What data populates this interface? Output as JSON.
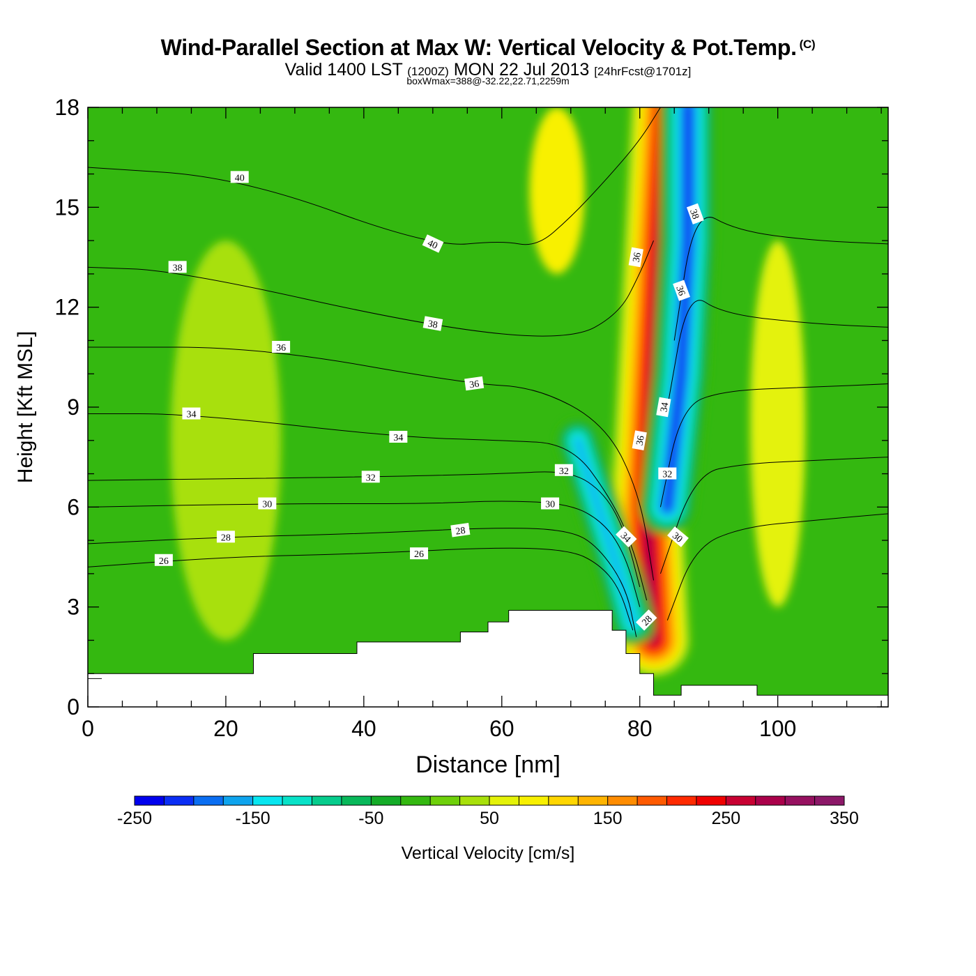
{
  "title": {
    "main": "Wind-Parallel Section at Max W: Vertical Velocity & Pot.Temp.",
    "copyright": "(C)",
    "valid_prefix": "Valid 1400 LST",
    "valid_utc": "(1200Z)",
    "valid_date": "MON 22 Jul 2013",
    "forecast": "[24hrFcst@1701z]",
    "subtitle": "boxWmax=388@-32.22,22.71,2259m"
  },
  "chart_data": {
    "type": "heatmap",
    "xlabel": "Distance [nm]",
    "ylabel": "Height [Kft MSL]",
    "xlim": [
      0,
      116
    ],
    "ylim": [
      0,
      18
    ],
    "xticks": [
      0,
      20,
      40,
      60,
      80,
      100
    ],
    "yticks": [
      0,
      3,
      6,
      9,
      12,
      15,
      18
    ],
    "colorbar": {
      "label": "Vertical Velocity [cm/s]",
      "range": [
        -250,
        350
      ],
      "step": 25,
      "ticks": [
        -250,
        -150,
        -50,
        50,
        150,
        250,
        350
      ],
      "colors": [
        "#0000ee",
        "#0a2ef5",
        "#0a6ef2",
        "#0ea4ee",
        "#08e6f0",
        "#08e2c8",
        "#06cc8c",
        "#08b85a",
        "#14ac28",
        "#34b810",
        "#6ed00a",
        "#a8e00a",
        "#e4f208",
        "#f8f000",
        "#ffd600",
        "#ffb400",
        "#ff8c00",
        "#ff5a00",
        "#ff2a00",
        "#f00000",
        "#c80032",
        "#aa004a",
        "#961060",
        "#8c1868"
      ]
    },
    "background_value": -25,
    "terrain": [
      [
        0,
        1.0
      ],
      [
        24,
        1.6
      ],
      [
        39,
        1.95
      ],
      [
        54,
        2.25
      ],
      [
        58,
        2.55
      ],
      [
        61,
        2.9
      ],
      [
        76,
        2.3
      ],
      [
        78,
        1.6
      ],
      [
        80,
        1.0
      ],
      [
        82,
        0.35
      ],
      [
        86,
        0.65
      ],
      [
        97,
        0.35
      ],
      [
        116,
        0.35
      ]
    ],
    "field_features": [
      {
        "desc": "updraft core",
        "peak_value": 300,
        "path_x": [
          82,
          81,
          82,
          83,
          84
        ],
        "path_y": [
          2,
          6,
          10,
          14,
          18
        ]
      },
      {
        "desc": "downdraft upper",
        "peak_value": -225,
        "path_x": [
          84,
          86,
          87,
          87
        ],
        "path_y": [
          6,
          10,
          14,
          18
        ]
      },
      {
        "desc": "downdraft lower",
        "peak_value": -175,
        "path_x": [
          71,
          74,
          77,
          79
        ],
        "path_y": [
          8,
          6,
          4,
          2.5
        ]
      },
      {
        "desc": "weak ascent band left",
        "peak_value": 25,
        "x_range": [
          12,
          28
        ],
        "y_range": [
          2,
          14
        ]
      },
      {
        "desc": "weak ascent band upper",
        "peak_value": 75,
        "x_range": [
          64,
          72
        ],
        "y_range": [
          13,
          18
        ]
      },
      {
        "desc": "weak ascent band right",
        "peak_value": 50,
        "x_range": [
          96,
          104
        ],
        "y_range": [
          3,
          14
        ]
      }
    ],
    "theta_contours": [
      {
        "label": "26",
        "x": [
          0,
          20,
          40,
          60,
          70,
          74,
          77,
          79
        ],
        "y": [
          4.2,
          4.5,
          4.6,
          4.8,
          4.7,
          4.3,
          3.6,
          2.3
        ]
      },
      {
        "label": "28",
        "x": [
          0,
          20,
          40,
          60,
          70,
          74,
          78,
          79.5
        ],
        "y": [
          4.9,
          5.1,
          5.2,
          5.4,
          5.3,
          4.8,
          3.6,
          2.1
        ]
      },
      {
        "label": "30",
        "x": [
          0,
          25,
          50,
          60,
          70,
          75,
          78,
          80
        ],
        "y": [
          6.0,
          6.1,
          6.1,
          6.2,
          6.1,
          5.5,
          4.5,
          3.0
        ]
      },
      {
        "label": "32",
        "x": [
          0,
          40,
          60,
          70,
          75,
          78,
          80
        ],
        "y": [
          6.8,
          6.9,
          7.0,
          7.1,
          6.4,
          5.2,
          3.6
        ]
      },
      {
        "label": "34",
        "x": [
          0,
          15,
          45,
          60,
          70,
          76,
          79,
          81
        ],
        "y": [
          8.8,
          8.8,
          8.1,
          8.0,
          7.9,
          6.2,
          4.8,
          3.2
        ]
      },
      {
        "label": "36",
        "x": [
          0,
          25,
          55,
          65,
          75,
          80,
          82
        ],
        "y": [
          10.8,
          10.8,
          9.7,
          9.6,
          8.5,
          6.4,
          3.8
        ]
      },
      {
        "label": "38",
        "x": [
          0,
          13,
          50,
          70,
          77,
          80,
          82
        ],
        "y": [
          13.2,
          13.1,
          11.4,
          11.0,
          11.8,
          13.0,
          14.0
        ]
      },
      {
        "label": "40",
        "x": [
          0,
          22,
          50,
          60,
          65,
          70,
          75,
          80,
          83
        ],
        "y": [
          16.2,
          15.9,
          13.8,
          14.0,
          13.8,
          14.7,
          15.8,
          17.0,
          18.0
        ]
      },
      {
        "label": "30",
        "x": [
          84,
          88,
          95,
          105,
          116
        ],
        "y": [
          2.6,
          4.8,
          5.4,
          5.6,
          5.8
        ]
      },
      {
        "label": "32",
        "x": [
          83,
          88,
          95,
          105,
          116
        ],
        "y": [
          4.0,
          7.0,
          7.3,
          7.4,
          7.5
        ]
      },
      {
        "label": "34",
        "x": [
          83,
          86,
          92,
          105,
          116
        ],
        "y": [
          6.0,
          9.0,
          9.5,
          9.6,
          9.7
        ]
      },
      {
        "label": "36",
        "x": [
          84,
          87,
          92,
          105,
          116
        ],
        "y": [
          9.0,
          12.5,
          11.8,
          11.5,
          11.4
        ]
      },
      {
        "label": "38",
        "x": [
          85,
          88,
          94,
          105,
          116
        ],
        "y": [
          11.0,
          15.0,
          14.3,
          14.0,
          13.9
        ]
      }
    ],
    "contour_labels": [
      {
        "text": "26",
        "x": 11,
        "y": 4.4,
        "angle": 0
      },
      {
        "text": "28",
        "x": 20,
        "y": 5.1,
        "angle": 0
      },
      {
        "text": "30",
        "x": 26,
        "y": 6.1,
        "angle": 0
      },
      {
        "text": "32",
        "x": 41,
        "y": 6.9,
        "angle": 0
      },
      {
        "text": "34",
        "x": 45,
        "y": 8.1,
        "angle": 0
      },
      {
        "text": "34",
        "x": 15,
        "y": 8.8,
        "angle": 0
      },
      {
        "text": "36",
        "x": 28,
        "y": 10.8,
        "angle": 0
      },
      {
        "text": "36",
        "x": 56,
        "y": 9.7,
        "angle": -8
      },
      {
        "text": "38",
        "x": 13,
        "y": 13.2,
        "angle": 0
      },
      {
        "text": "38",
        "x": 50,
        "y": 11.5,
        "angle": 10
      },
      {
        "text": "40",
        "x": 22,
        "y": 15.9,
        "angle": 0
      },
      {
        "text": "40",
        "x": 50,
        "y": 13.9,
        "angle": 25
      },
      {
        "text": "26",
        "x": 48,
        "y": 4.6,
        "angle": 0
      },
      {
        "text": "28",
        "x": 54,
        "y": 5.3,
        "angle": -8
      },
      {
        "text": "30",
        "x": 67,
        "y": 6.1,
        "angle": 0
      },
      {
        "text": "32",
        "x": 69,
        "y": 7.1,
        "angle": 0
      },
      {
        "text": "34",
        "x": 78,
        "y": 5.1,
        "angle": 45
      },
      {
        "text": "28",
        "x": 81,
        "y": 2.6,
        "angle": -45
      },
      {
        "text": "36",
        "x": 80,
        "y": 8.0,
        "angle": -80
      },
      {
        "text": "36",
        "x": 79.5,
        "y": 13.5,
        "angle": -80
      },
      {
        "text": "34",
        "x": 83.5,
        "y": 9.0,
        "angle": -80
      },
      {
        "text": "32",
        "x": 84,
        "y": 7.0,
        "angle": 0
      },
      {
        "text": "30",
        "x": 85.5,
        "y": 5.1,
        "angle": 40
      },
      {
        "text": "36",
        "x": 86,
        "y": 12.5,
        "angle": 70
      },
      {
        "text": "38",
        "x": 88,
        "y": 14.8,
        "angle": 70
      }
    ]
  }
}
